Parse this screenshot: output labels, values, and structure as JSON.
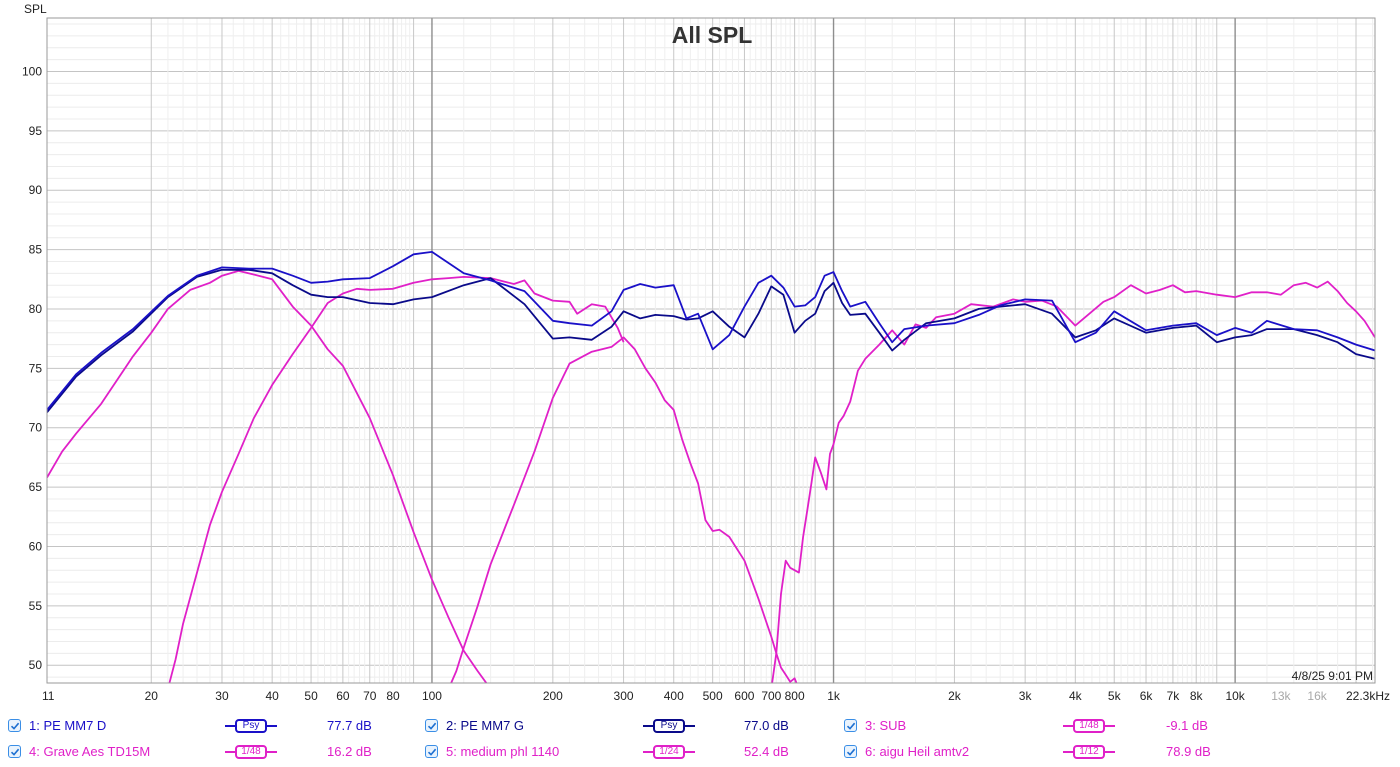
{
  "chart_data": {
    "type": "line",
    "title": "All SPL",
    "ylabel": "SPL",
    "xlabel": "",
    "x_scale": "log",
    "xlim": [
      11,
      22300
    ],
    "ylim": [
      48.5,
      104.5
    ],
    "y_ticks": [
      50,
      55,
      60,
      65,
      70,
      75,
      80,
      85,
      90,
      95,
      100
    ],
    "y_tick_labels": [
      "50",
      "55",
      "60",
      "65",
      "70",
      "75",
      "80",
      "85",
      "90",
      "95",
      "100"
    ],
    "x_ticks": [
      11,
      20,
      30,
      40,
      50,
      60,
      70,
      80,
      100,
      200,
      300,
      400,
      500,
      600,
      700,
      800,
      1000,
      2000,
      3000,
      4000,
      5000,
      6000,
      7000,
      8000,
      10000,
      13000,
      16000
    ],
    "x_tick_labels": [
      "11",
      "20",
      "30",
      "40",
      "50",
      "60",
      "70",
      "80",
      "100",
      "200",
      "300",
      "400",
      "500",
      "600",
      "700",
      "800",
      "1k",
      "2k",
      "3k",
      "4k",
      "5k",
      "6k",
      "7k",
      "8k",
      "10k",
      "13k",
      "16k"
    ],
    "x_tick_dim": [
      false,
      false,
      false,
      false,
      false,
      false,
      false,
      false,
      false,
      false,
      false,
      false,
      false,
      false,
      false,
      false,
      false,
      false,
      false,
      false,
      false,
      false,
      false,
      false,
      false,
      true,
      true
    ],
    "x_end_label": "22.3kHz",
    "timestamp": "4/8/25 9:01 PM",
    "grid": true,
    "series": [
      {
        "name": "1: PE MM7 D",
        "color": "#1a10c8",
        "smoothing": "Psy",
        "level": "77.7 dB",
        "x": [
          11,
          13,
          15,
          18,
          22,
          26,
          30,
          35,
          40,
          45,
          50,
          55,
          60,
          70,
          80,
          90,
          100,
          120,
          140,
          170,
          200,
          220,
          250,
          280,
          300,
          330,
          360,
          400,
          430,
          460,
          500,
          550,
          600,
          650,
          700,
          750,
          800,
          850,
          900,
          950,
          1000,
          1050,
          1100,
          1200,
          1300,
          1400,
          1500,
          1700,
          2000,
          2300,
          2600,
          3000,
          3500,
          4000,
          4500,
          5000,
          6000,
          7000,
          8000,
          9000,
          10000,
          11000,
          12000,
          14000,
          16000,
          18000,
          20000,
          22300
        ],
        "y": [
          71.5,
          74.5,
          76.3,
          78.3,
          81.1,
          82.8,
          83.5,
          83.4,
          83.4,
          82.8,
          82.2,
          82.3,
          82.5,
          82.6,
          83.6,
          84.6,
          84.8,
          83.0,
          82.4,
          81.5,
          79.0,
          78.8,
          78.6,
          79.8,
          81.6,
          82.1,
          81.8,
          82.0,
          79.2,
          79.6,
          76.6,
          77.8,
          80.2,
          82.2,
          82.8,
          81.8,
          80.2,
          80.3,
          81.0,
          82.8,
          83.1,
          81.5,
          80.2,
          80.6,
          78.8,
          77.2,
          78.3,
          78.6,
          78.8,
          79.5,
          80.3,
          80.8,
          80.7,
          77.2,
          78.0,
          79.8,
          78.2,
          78.6,
          78.8,
          77.8,
          78.4,
          78.0,
          79.0,
          78.3,
          78.2,
          77.6,
          77.0,
          76.5
        ]
      },
      {
        "name": "2: PE MM7 G",
        "color": "#0a0a8a",
        "smoothing": "Psy",
        "level": "77.0 dB",
        "x": [
          11,
          13,
          15,
          18,
          22,
          26,
          30,
          35,
          40,
          45,
          50,
          55,
          60,
          70,
          80,
          90,
          100,
          120,
          140,
          170,
          200,
          220,
          250,
          280,
          300,
          330,
          360,
          400,
          430,
          460,
          500,
          550,
          600,
          650,
          700,
          750,
          800,
          850,
          900,
          950,
          1000,
          1050,
          1100,
          1200,
          1300,
          1400,
          1500,
          1700,
          2000,
          2300,
          2600,
          3000,
          3500,
          4000,
          4500,
          5000,
          6000,
          7000,
          8000,
          9000,
          10000,
          11000,
          12000,
          14000,
          16000,
          18000,
          20000,
          22300
        ],
        "y": [
          71.3,
          74.3,
          76.1,
          78.1,
          81.0,
          82.7,
          83.3,
          83.3,
          83.0,
          82.0,
          81.2,
          81.0,
          81.0,
          80.5,
          80.4,
          80.8,
          81.0,
          82.0,
          82.6,
          80.4,
          77.5,
          77.6,
          77.4,
          78.5,
          79.8,
          79.2,
          79.5,
          79.4,
          79.1,
          79.2,
          79.8,
          78.5,
          77.6,
          79.6,
          81.9,
          81.2,
          78.0,
          79.0,
          79.6,
          81.5,
          82.2,
          80.5,
          79.5,
          79.6,
          78.0,
          76.5,
          77.4,
          78.8,
          79.2,
          80.0,
          80.2,
          80.4,
          79.6,
          77.6,
          78.2,
          79.2,
          78.0,
          78.4,
          78.6,
          77.2,
          77.6,
          77.8,
          78.3,
          78.3,
          77.8,
          77.2,
          76.2,
          75.8
        ]
      },
      {
        "name": "3: SUB",
        "color": "#e020c8",
        "smoothing": "1/48",
        "level": "-9.1 dB",
        "x": [
          11,
          12,
          13,
          15,
          18,
          20,
          22,
          25,
          28,
          30,
          33,
          37,
          40,
          45,
          50,
          55,
          60,
          70,
          80,
          90,
          100,
          110,
          120,
          130,
          140
        ],
        "y": [
          65.8,
          68.0,
          69.5,
          72.0,
          76.0,
          78.0,
          80.0,
          81.6,
          82.2,
          82.8,
          83.2,
          82.8,
          82.5,
          80.2,
          78.6,
          76.6,
          75.2,
          70.8,
          66.0,
          61.2,
          57.2,
          54.0,
          51.2,
          49.5,
          48.0
        ]
      },
      {
        "name": "4: Grave Aes TD15M",
        "color": "#e020c8",
        "smoothing": "1/48",
        "level": "16.2 dB",
        "x": [
          22,
          23,
          24,
          26,
          28,
          30,
          33,
          36,
          40,
          45,
          50,
          55,
          60,
          65,
          70,
          80,
          90,
          100,
          110,
          120,
          140,
          160,
          170,
          180,
          200,
          220,
          230,
          250,
          270,
          290,
          300
        ],
        "y": [
          48.0,
          50.5,
          53.5,
          57.8,
          61.8,
          64.6,
          67.8,
          70.8,
          73.6,
          76.2,
          78.4,
          80.5,
          81.3,
          81.7,
          81.6,
          81.7,
          82.2,
          82.5,
          82.6,
          82.7,
          82.6,
          82.1,
          82.4,
          81.3,
          80.7,
          80.6,
          79.6,
          80.4,
          80.2,
          78.4,
          77.2
        ]
      },
      {
        "name": "5: medium phl 1140",
        "color": "#e020c8",
        "smoothing": "1/24",
        "level": "52.4 dB",
        "x": [
          110,
          115,
          120,
          130,
          140,
          160,
          180,
          200,
          220,
          250,
          280,
          300,
          320,
          340,
          360,
          380,
          400,
          420,
          440,
          460,
          480,
          500,
          520,
          550,
          600,
          650,
          700,
          720,
          740,
          760,
          780,
          800,
          820
        ],
        "y": [
          48.0,
          49.5,
          51.5,
          55.0,
          58.5,
          63.5,
          68.0,
          72.5,
          75.4,
          76.4,
          76.8,
          77.6,
          76.6,
          75.0,
          73.8,
          72.3,
          71.5,
          69.0,
          67.0,
          65.3,
          62.2,
          61.3,
          61.4,
          60.8,
          58.8,
          55.6,
          52.4,
          51.0,
          49.8,
          49.2,
          48.6,
          48.9,
          48.0
        ]
      },
      {
        "name": "6: aigu Heil amtv2",
        "color": "#e020c8",
        "smoothing": "1/12",
        "level": "78.9 dB",
        "x": [
          700,
          720,
          740,
          760,
          780,
          800,
          820,
          840,
          860,
          880,
          900,
          930,
          960,
          980,
          1000,
          1030,
          1060,
          1100,
          1150,
          1200,
          1300,
          1400,
          1500,
          1600,
          1700,
          1800,
          2000,
          2200,
          2500,
          2800,
          3000,
          3300,
          3600,
          4000,
          4300,
          4700,
          5000,
          5500,
          6000,
          6500,
          7000,
          7500,
          8000,
          9000,
          10000,
          11000,
          12000,
          13000,
          14000,
          15000,
          16000,
          17000,
          18000,
          19000,
          20000,
          21000,
          22300
        ],
        "y": [
          48.0,
          51.0,
          56.0,
          58.8,
          58.2,
          58.0,
          57.8,
          60.8,
          63.0,
          65.2,
          67.5,
          66.2,
          64.8,
          67.8,
          68.6,
          70.4,
          71.0,
          72.2,
          74.8,
          75.8,
          77.0,
          78.2,
          77.0,
          78.7,
          78.4,
          79.3,
          79.6,
          80.4,
          80.2,
          80.8,
          80.6,
          80.7,
          80.2,
          78.6,
          79.5,
          80.6,
          81.0,
          82.0,
          81.3,
          81.6,
          82.0,
          81.4,
          81.5,
          81.2,
          81.0,
          81.4,
          81.4,
          81.2,
          82.0,
          82.2,
          81.8,
          82.3,
          81.5,
          80.5,
          79.8,
          79.0,
          77.6
        ]
      }
    ]
  },
  "legend": {
    "items": [
      {
        "name": "1: PE MM7 D",
        "smooth_label": "Psy",
        "value": "77.7 dB",
        "color": "#1a10c8"
      },
      {
        "name": "2: PE MM7 G",
        "smooth_label": "Psy",
        "value": "77.0 dB",
        "color": "#0a0a8a"
      },
      {
        "name": "3: SUB",
        "smooth_label": "1/48",
        "value": "-9.1 dB",
        "color": "#e020c8"
      },
      {
        "name": "4: Grave Aes TD15M",
        "smooth_label": "1/48",
        "value": "16.2 dB",
        "color": "#e020c8"
      },
      {
        "name": "5: medium phl 1140",
        "smooth_label": "1/24",
        "value": "52.4 dB",
        "color": "#e020c8"
      },
      {
        "name": "6: aigu Heil amtv2",
        "smooth_label": "1/12",
        "value": "78.9 dB",
        "color": "#e020c8"
      }
    ]
  }
}
